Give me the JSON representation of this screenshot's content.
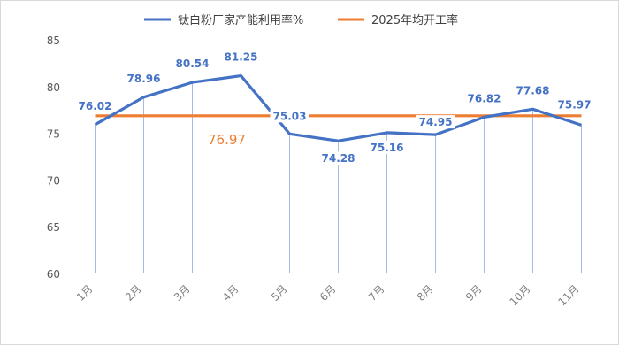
{
  "chart_data": {
    "type": "line",
    "categories": [
      "1月",
      "2月",
      "3月",
      "4月",
      "5月",
      "6月",
      "7月",
      "8月",
      "9月",
      "10月",
      "11月"
    ],
    "series": [
      {
        "name": "钛白粉厂家产能利用率%",
        "values": [
          76.02,
          78.96,
          80.54,
          81.25,
          75.03,
          74.28,
          75.16,
          74.95,
          76.82,
          77.68,
          75.97
        ],
        "color": "#4472c4",
        "labels": [
          "76.02",
          "78.96",
          "80.54",
          "81.25",
          "75.03",
          "74.28",
          "75.16",
          "74.95",
          "76.82",
          "77.68",
          "75.97"
        ]
      },
      {
        "name": "2025年均开工率",
        "values": [
          76.97,
          76.97,
          76.97,
          76.97,
          76.97,
          76.97,
          76.97,
          76.97,
          76.97,
          76.97,
          76.97
        ],
        "color": "#ed7d31",
        "label": "76.97"
      }
    ],
    "ylim": [
      60,
      85
    ],
    "yticks": [
      "60",
      "65",
      "70",
      "75",
      "80",
      "85"
    ],
    "legend": "top-center",
    "grid": false,
    "drop_lines": true
  }
}
